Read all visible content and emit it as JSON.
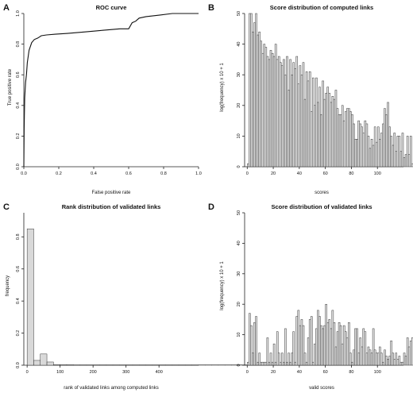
{
  "chart_data": [
    {
      "panel": "A",
      "type": "line",
      "title": "ROC curve",
      "xlabel": "False positive rate",
      "ylabel": "True positive rate",
      "xticks": [
        "0.0",
        "0.2",
        "0.4",
        "0.6",
        "0.8",
        "1.0"
      ],
      "yticks": [
        "0.0",
        "0.2",
        "0.4",
        "0.6",
        "0.8",
        "1.0"
      ],
      "xlim": [
        0,
        1
      ],
      "ylim": [
        0,
        1
      ],
      "x": [
        0.0,
        0.002,
        0.005,
        0.01,
        0.015,
        0.02,
        0.03,
        0.045,
        0.06,
        0.08,
        0.1,
        0.13,
        0.18,
        0.25,
        0.35,
        0.45,
        0.55,
        0.6,
        0.62,
        0.64,
        0.66,
        0.7,
        0.78,
        0.85,
        1.0
      ],
      "y": [
        0.0,
        0.25,
        0.45,
        0.55,
        0.6,
        0.68,
        0.76,
        0.81,
        0.83,
        0.84,
        0.855,
        0.86,
        0.865,
        0.87,
        0.88,
        0.89,
        0.9,
        0.9,
        0.94,
        0.95,
        0.97,
        0.98,
        0.99,
        1.0,
        1.0
      ]
    },
    {
      "panel": "B",
      "type": "bar",
      "title": "Score distribution of computed links",
      "xlabel": "scores",
      "ylabel": "log(frequency) x 10 + 1",
      "xticks": [
        "0",
        "20",
        "40",
        "60",
        "80",
        "100"
      ],
      "yticks": [
        "0",
        "10",
        "20",
        "30",
        "40",
        "50"
      ],
      "xlim": [
        -2,
        120
      ],
      "ylim": [
        0,
        50
      ],
      "bin_width": 1.25,
      "values": [
        1,
        52,
        52,
        44,
        47,
        52,
        43,
        44,
        41,
        37,
        40,
        39,
        36,
        35,
        38,
        37,
        36,
        40,
        35,
        36,
        34,
        33,
        35,
        30,
        36,
        25,
        35,
        30,
        34,
        32,
        36,
        27,
        33,
        30,
        34,
        22,
        31,
        28,
        31,
        18,
        29,
        20,
        29,
        21,
        26,
        17,
        28,
        22,
        24,
        26,
        24,
        21,
        23,
        22,
        25,
        19,
        17,
        17,
        20,
        15,
        18,
        19,
        19,
        18,
        17,
        14,
        9,
        9,
        15,
        14,
        13,
        11,
        15,
        14,
        10,
        6,
        9,
        7,
        13,
        8,
        13,
        9,
        11,
        14,
        19,
        17,
        21,
        13,
        10,
        7,
        11,
        5,
        10,
        10,
        5,
        11,
        3,
        4,
        10,
        4,
        10,
        1,
        6,
        5,
        4,
        8,
        13,
        2,
        1,
        2,
        1,
        3,
        1,
        2,
        3,
        4,
        1,
        1,
        1,
        1
      ],
      "ann": [
        "0",
        "10",
        "20",
        "30",
        "40",
        "50"
      ]
    },
    {
      "panel": "C",
      "type": "bar",
      "title": "Rank distribution of validated links",
      "xlabel": "rank of validated links among computed links",
      "ylabel": "frequency",
      "xticks": [
        "0",
        "100",
        "200",
        "300",
        "400"
      ],
      "yticks": [
        "0.0",
        "0.2",
        "0.4",
        "0.6",
        "0.8"
      ],
      "xlim": [
        -10,
        520
      ],
      "ylim": [
        0,
        0.95
      ],
      "bin_width": 20,
      "values": [
        0.85,
        0.03,
        0.07,
        0.02,
        0.004,
        0.003,
        0.003,
        0.002,
        0.002,
        0.002,
        0.002,
        0.002,
        0.002,
        0.002,
        0.002,
        0.002,
        0.002,
        0.002,
        0.002,
        0.002,
        0.002,
        0.002,
        0.002,
        0.002,
        0.002,
        0.002,
        0.002,
        0.002,
        0.002,
        0.002,
        0.002,
        0.002,
        0.002,
        0.002,
        0.002,
        0.002,
        0.002,
        0.002,
        0.002,
        0.002,
        0.002,
        0.002,
        0.002,
        0.002,
        0.002,
        0.002,
        0.002,
        0.002,
        0.002,
        0.002,
        0.002,
        0.002,
        0.002,
        0.002,
        0.002,
        0.01,
        0.0
      ]
    },
    {
      "panel": "D",
      "type": "bar",
      "title": "Score distribution of validated links",
      "xlabel": "valid scores",
      "ylabel": "log(frequency) x 10 + 1",
      "xticks": [
        "0",
        "20",
        "40",
        "60",
        "80",
        "100"
      ],
      "yticks": [
        "0",
        "10",
        "20",
        "30",
        "40",
        "50"
      ],
      "xlim": [
        -2,
        120
      ],
      "ylim": [
        0,
        50
      ],
      "bin_width": 1.25,
      "values": [
        1,
        17,
        13,
        4,
        14,
        16,
        1,
        4,
        1,
        1,
        1,
        1,
        9,
        1,
        4,
        1,
        7,
        1,
        11,
        4,
        1,
        4,
        1,
        12,
        1,
        4,
        1,
        4,
        11,
        1,
        16,
        18,
        13,
        15,
        13,
        4,
        1,
        9,
        15,
        16,
        1,
        7,
        12,
        18,
        16,
        13,
        12,
        13,
        20,
        14,
        15,
        12,
        18,
        14,
        6,
        11,
        14,
        13,
        7,
        13,
        11,
        9,
        14,
        4,
        1,
        5,
        12,
        12,
        4,
        9,
        6,
        12,
        11,
        4,
        6,
        5,
        4,
        12,
        5,
        4,
        4,
        6,
        4,
        1,
        5,
        3,
        2,
        3,
        8,
        4,
        2,
        4,
        2,
        3,
        1,
        1,
        4,
        3,
        9,
        6,
        8,
        9,
        1,
        1,
        1,
        1,
        1,
        1,
        1,
        1,
        1,
        1
      ],
      "ann": [
        "0",
        "10",
        "20",
        "30",
        "40",
        "50"
      ]
    }
  ]
}
